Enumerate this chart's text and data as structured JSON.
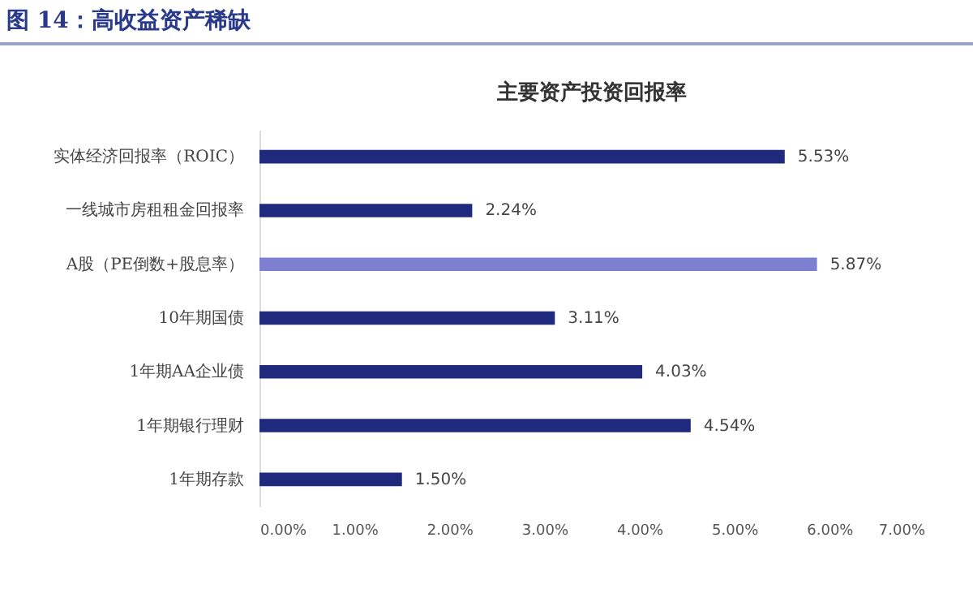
{
  "chart_data": {
    "type": "bar",
    "orientation": "horizontal",
    "title": "主要资产投资回报率",
    "annotations": [
      "图 14：高收益资产稀缺"
    ],
    "categories": [
      "实体经济回报率（ROIC）",
      "一线城市房租租金回报率",
      "A股（PE倒数+股息率）",
      "10年期国债",
      "1年期AA企业债",
      "1年期银行理财",
      "1年期存款"
    ],
    "values": [
      5.53,
      2.24,
      5.87,
      3.11,
      4.03,
      4.54,
      1.5
    ],
    "colors": [
      "#1f2a7e",
      "#1f2a7e",
      "#7d80d0",
      "#1f2a7e",
      "#1f2a7e",
      "#1f2a7e",
      "#1f2a7e"
    ],
    "value_labels": [
      "5.53%",
      "2.24%",
      "5.87%",
      "3.11%",
      "4.03%",
      "4.54%",
      "1.50%"
    ],
    "xlim": [
      0,
      7
    ],
    "xticks": [
      {
        "value": 0,
        "label": "0.00%"
      },
      {
        "value": 1,
        "label": "1.00%"
      },
      {
        "value": 2,
        "label": "2.00%"
      },
      {
        "value": 3,
        "label": "3.00%"
      },
      {
        "value": 4,
        "label": "4.00%"
      },
      {
        "value": 5,
        "label": "5.00%"
      },
      {
        "value": 6,
        "label": "6.00%"
      },
      {
        "value": 7,
        "label": "7.00%"
      }
    ],
    "grid": false
  }
}
